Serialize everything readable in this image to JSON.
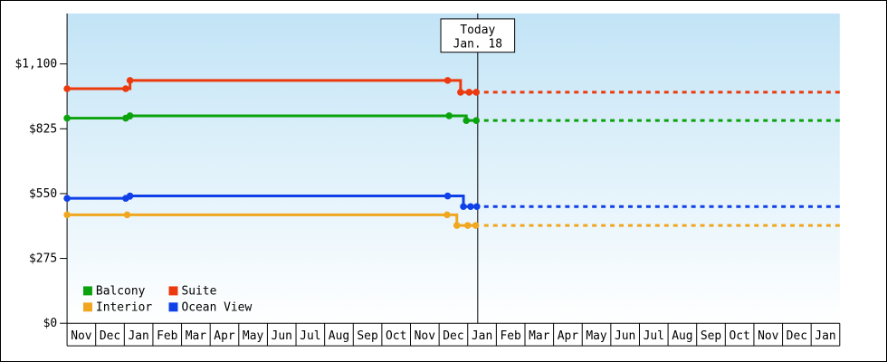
{
  "colors": {
    "suite": "#ec3a0e",
    "balcony": "#0ba30d",
    "ocean_view": "#1040e8",
    "interior": "#f0a71f",
    "axis": "#000000",
    "plot_top": "#c2e4f6",
    "plot_bottom": "#ffffff",
    "today_box_bg": "#ffffff"
  },
  "chart_data": {
    "type": "line",
    "title": "",
    "xlabel": "",
    "ylabel": "",
    "ylim": [
      0,
      1100
    ],
    "grid": false,
    "legend_position": "bottom-left-inside",
    "x_months": [
      "Nov",
      "Dec",
      "Jan",
      "Feb",
      "Mar",
      "Apr",
      "May",
      "Jun",
      "Jul",
      "Aug",
      "Sep",
      "Oct",
      "Nov",
      "Dec",
      "Jan",
      "Feb",
      "Mar",
      "Apr",
      "May",
      "Jun",
      "Jul",
      "Aug",
      "Sep",
      "Oct",
      "Nov",
      "Dec",
      "Jan"
    ],
    "y_ticks": [
      {
        "label": "$0",
        "value": 0
      },
      {
        "label": "$275",
        "value": 275
      },
      {
        "label": "$550",
        "value": 550
      },
      {
        "label": "$825",
        "value": 825
      },
      {
        "label": "$1,100",
        "value": 1100
      }
    ],
    "today": {
      "label_line1": "Today",
      "label_line2": "Jan. 18",
      "t": 14.35
    },
    "series": [
      {
        "name": "Balcony",
        "color_key": "balcony",
        "points": [
          [
            0,
            870
          ],
          [
            2.05,
            870
          ],
          [
            2.2,
            880
          ],
          [
            13.35,
            880
          ],
          [
            13.95,
            860
          ],
          [
            14.3,
            860
          ]
        ],
        "projected_value": 860
      },
      {
        "name": "Suite",
        "color_key": "suite",
        "points": [
          [
            0,
            995
          ],
          [
            2.05,
            995
          ],
          [
            2.2,
            1030
          ],
          [
            13.3,
            1030
          ],
          [
            13.75,
            980
          ],
          [
            14.05,
            980
          ],
          [
            14.3,
            980
          ]
        ],
        "projected_value": 980
      },
      {
        "name": "Interior",
        "color_key": "interior",
        "points": [
          [
            0,
            460
          ],
          [
            2.1,
            460
          ],
          [
            13.28,
            460
          ],
          [
            13.62,
            415
          ],
          [
            14.0,
            415
          ],
          [
            14.28,
            415
          ]
        ],
        "projected_value": 415
      },
      {
        "name": "Ocean View",
        "color_key": "ocean_view",
        "points": [
          [
            0,
            530
          ],
          [
            2.05,
            530
          ],
          [
            2.2,
            540
          ],
          [
            13.3,
            540
          ],
          [
            13.85,
            495
          ],
          [
            14.1,
            495
          ],
          [
            14.32,
            495
          ]
        ],
        "projected_value": 495
      }
    ],
    "legend": [
      {
        "label": "Balcony",
        "color_key": "balcony"
      },
      {
        "label": "Suite",
        "color_key": "suite"
      },
      {
        "label": "Interior",
        "color_key": "interior"
      },
      {
        "label": "Ocean View",
        "color_key": "ocean_view"
      }
    ]
  }
}
